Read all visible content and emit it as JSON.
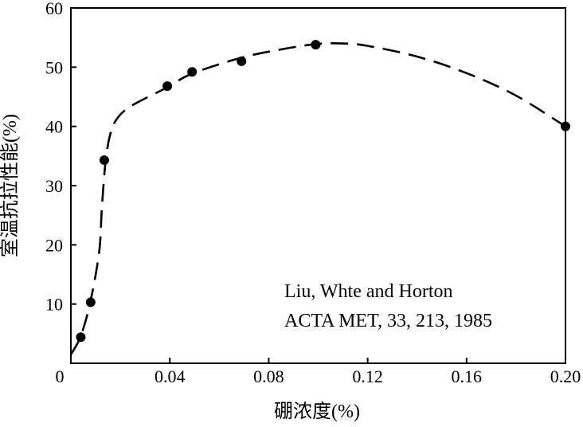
{
  "chart_data": {
    "type": "scatter",
    "xlabel": "硼浓度(%)",
    "ylabel": "室温抗拉性能(%)",
    "xlim": [
      0,
      0.2
    ],
    "ylim": [
      0,
      60
    ],
    "x_ticks": [
      {
        "value": 0.04,
        "label": "0.04"
      },
      {
        "value": 0.08,
        "label": "0.08"
      },
      {
        "value": 0.12,
        "label": "0.12"
      },
      {
        "value": 0.16,
        "label": "0.16"
      },
      {
        "value": 0.2,
        "label": "0.20"
      }
    ],
    "y_ticks": [
      {
        "value": 10,
        "label": "10"
      },
      {
        "value": 20,
        "label": "20"
      },
      {
        "value": 30,
        "label": "30"
      },
      {
        "value": 40,
        "label": "40"
      },
      {
        "value": 50,
        "label": "50"
      },
      {
        "value": 60,
        "label": "60"
      }
    ],
    "origin_label": "0",
    "points": [
      {
        "x": 0.004,
        "y": 4.4
      },
      {
        "x": 0.008,
        "y": 10.3
      },
      {
        "x": 0.0135,
        "y": 34.3
      },
      {
        "x": 0.039,
        "y": 46.8
      },
      {
        "x": 0.049,
        "y": 49.2
      },
      {
        "x": 0.069,
        "y": 51.0
      },
      {
        "x": 0.099,
        "y": 53.8
      },
      {
        "x": 0.2,
        "y": 40.0
      }
    ],
    "fitted_curve": {
      "style": "dashed",
      "points": [
        {
          "x": 0.0,
          "y": 1.5
        },
        {
          "x": 0.004,
          "y": 4.6
        },
        {
          "x": 0.008,
          "y": 10.6
        },
        {
          "x": 0.0115,
          "y": 19.0
        },
        {
          "x": 0.0125,
          "y": 26.0
        },
        {
          "x": 0.014,
          "y": 34.0
        },
        {
          "x": 0.016,
          "y": 38.8
        },
        {
          "x": 0.019,
          "y": 41.5
        },
        {
          "x": 0.025,
          "y": 43.6
        },
        {
          "x": 0.039,
          "y": 46.6
        },
        {
          "x": 0.049,
          "y": 48.9
        },
        {
          "x": 0.069,
          "y": 51.6
        },
        {
          "x": 0.085,
          "y": 53.0
        },
        {
          "x": 0.099,
          "y": 53.9
        },
        {
          "x": 0.11,
          "y": 54.0
        },
        {
          "x": 0.12,
          "y": 53.6
        },
        {
          "x": 0.14,
          "y": 51.8
        },
        {
          "x": 0.16,
          "y": 49.0
        },
        {
          "x": 0.18,
          "y": 45.2
        },
        {
          "x": 0.2,
          "y": 40.0
        }
      ]
    },
    "grid": false,
    "annotation": {
      "line1": "Liu, Whte and Horton",
      "line2": "ACTA  MET, 33, 213, 1985"
    }
  }
}
